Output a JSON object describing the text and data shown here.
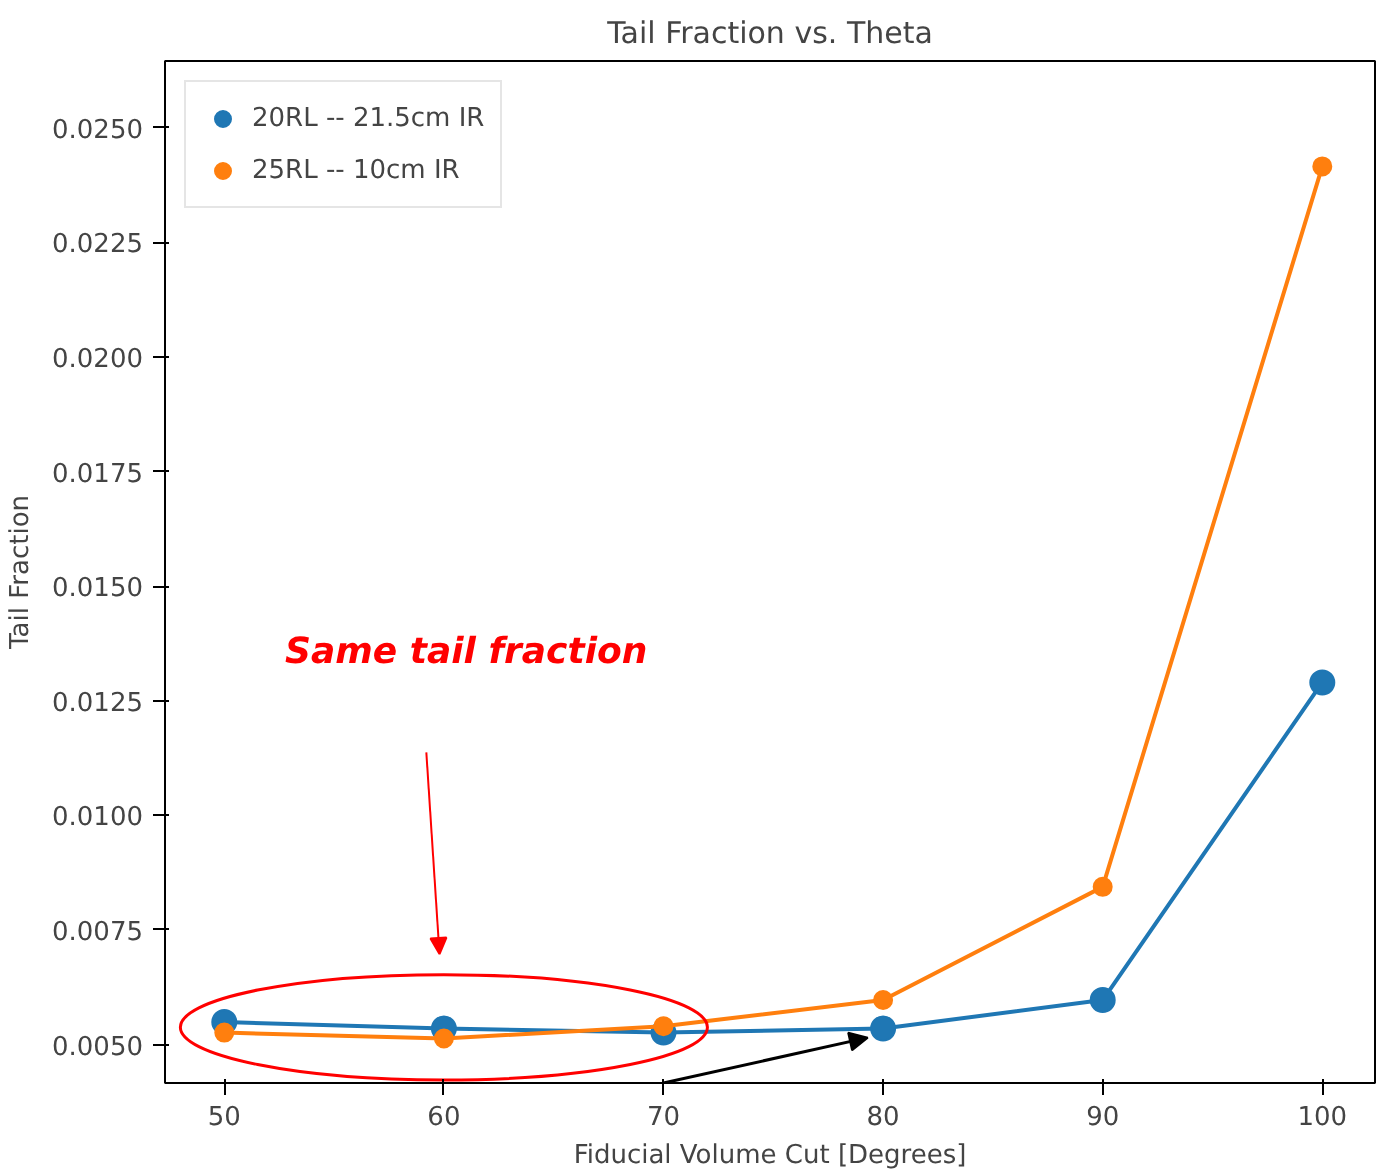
{
  "chart_data": {
    "type": "line",
    "title": "Tail Fraction vs. Theta",
    "xlabel": "Fiducial Volume Cut [Degrees]",
    "ylabel": "Tail Fraction",
    "x": [
      50,
      60,
      70,
      80,
      90,
      100
    ],
    "series": [
      {
        "name": "20RL -- 21.5cm IR",
        "color": "#1f77b4",
        "values": [
          0.00549,
          0.00535,
          0.00526,
          0.00535,
          0.00597,
          0.0129
        ]
      },
      {
        "name": "25RL -- 10cm IR",
        "color": "#ff7f0e",
        "values": [
          0.00526,
          0.00513,
          0.0054,
          0.00597,
          0.00844,
          0.02416
        ]
      }
    ],
    "xlim": [
      47.3,
      102.4
    ],
    "ylim": [
      0.00416,
      0.02646
    ],
    "xticks": [
      50,
      60,
      70,
      80,
      90,
      100
    ],
    "yticks": [
      {
        "value": 0.005,
        "label": "0.0050"
      },
      {
        "value": 0.0075,
        "label": "0.0075"
      },
      {
        "value": 0.01,
        "label": "0.0100"
      },
      {
        "value": 0.0125,
        "label": "0.0125"
      },
      {
        "value": 0.015,
        "label": "0.0150"
      },
      {
        "value": 0.0175,
        "label": "0.0175"
      },
      {
        "value": 0.02,
        "label": "0.0200"
      },
      {
        "value": 0.0225,
        "label": "0.0225"
      },
      {
        "value": 0.025,
        "label": "0.0250"
      }
    ],
    "annotations": [
      "Same tail fraction"
    ],
    "legend": "top left",
    "marker": "circle",
    "line_style": "solid",
    "grid": false
  }
}
